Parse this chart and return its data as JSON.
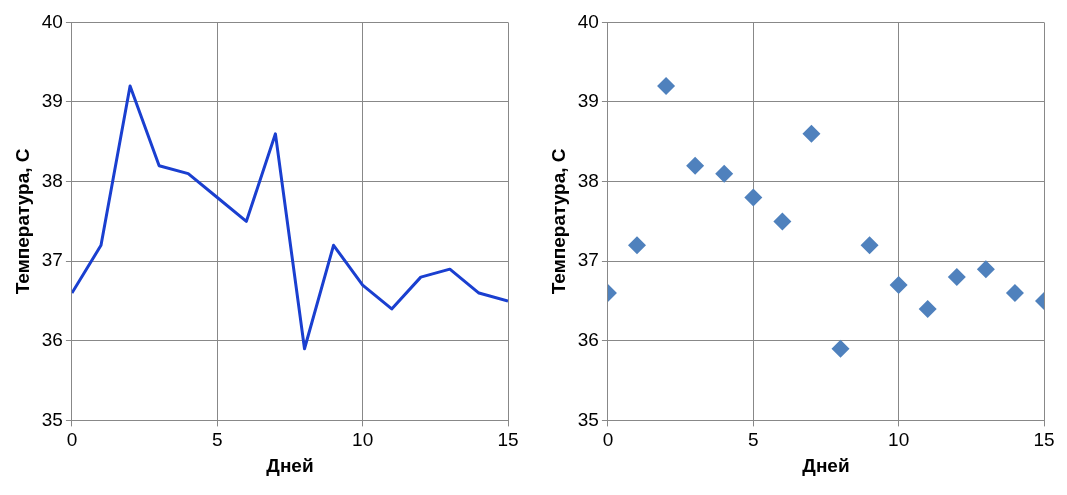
{
  "chart_data": [
    {
      "type": "line",
      "x": [
        0,
        1,
        2,
        3,
        4,
        5,
        6,
        7,
        8,
        9,
        10,
        11,
        12,
        13,
        14,
        15
      ],
      "values": [
        36.6,
        37.2,
        39.2,
        38.2,
        38.1,
        37.8,
        37.5,
        38.6,
        35.9,
        37.2,
        36.7,
        36.4,
        36.8,
        36.9,
        36.6,
        36.5
      ],
      "color": "#1a3fd0",
      "xlabel": "Дней",
      "ylabel": "Температура, С",
      "xlim": [
        0,
        15
      ],
      "xticks": [
        0,
        5,
        10,
        15
      ],
      "ylim": [
        35,
        40
      ],
      "yticks": [
        35,
        36,
        37,
        38,
        39,
        40
      ],
      "grid": true,
      "marker": "none"
    },
    {
      "type": "scatter",
      "x": [
        0,
        1,
        2,
        3,
        4,
        5,
        6,
        7,
        8,
        9,
        10,
        11,
        12,
        13,
        14,
        15
      ],
      "values": [
        36.6,
        37.2,
        39.2,
        38.2,
        38.1,
        37.8,
        37.5,
        38.6,
        35.9,
        37.2,
        36.7,
        36.4,
        36.8,
        36.9,
        36.6,
        36.5
      ],
      "color": "#4f81bd",
      "xlabel": "Дней",
      "ylabel": "Температура, С",
      "xlim": [
        0,
        15
      ],
      "xticks": [
        0,
        5,
        10,
        15
      ],
      "ylim": [
        35,
        40
      ],
      "yticks": [
        35,
        36,
        37,
        38,
        39,
        40
      ],
      "grid": true,
      "marker": "diamond"
    }
  ]
}
